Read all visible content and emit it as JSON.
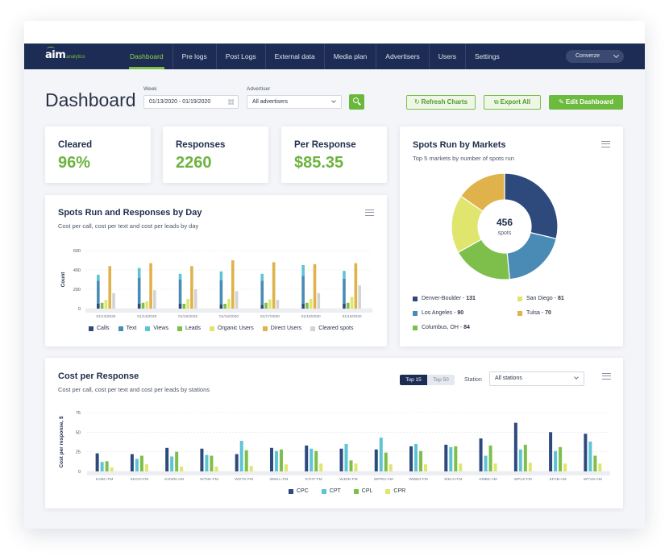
{
  "app": {
    "logo_mark": "aim",
    "logo_sub": "analytics",
    "nav": [
      "Dashboard",
      "Pre logs",
      "Post Logs",
      "External data",
      "Media plan",
      "Advertisers",
      "Users",
      "Settings"
    ],
    "active_nav": "Dashboard",
    "org": "Converze"
  },
  "toolbar": {
    "title": "Dashboard",
    "week_label": "Week",
    "week_value": "01/13/2020 - 01/19/2020",
    "advertiser_label": "Advertiser",
    "advertiser_value": "All advertisers",
    "refresh_label": "Refresh Charts",
    "export_label": "Export All",
    "edit_label": "Edit Dashboard"
  },
  "kpis": [
    {
      "title": "Cleared",
      "value": "96%"
    },
    {
      "title": "Responses",
      "value": "2260"
    },
    {
      "title": "Per Response",
      "value": "$85.35"
    }
  ],
  "colors": {
    "navy": "#2e4a7d",
    "blue": "#4a8bb5",
    "cyan": "#5ec4d4",
    "green": "#7dbf4a",
    "yellow": "#e0e56e",
    "gold": "#e0b24c",
    "grey": "#d3d3d3",
    "accent_green": "#6cb33f"
  },
  "spots_chart": {
    "title": "Spots Run and Responses by Day",
    "subtitle": "Cost per call, cost per text and cost per leads by day",
    "chart_data": {
      "type": "bar",
      "ylabel": "Count",
      "ylim": [
        0,
        600
      ],
      "yticks": [
        "0",
        "200",
        "400",
        "600"
      ],
      "categories": [
        "01/13/2020",
        "01/14/2020",
        "01/15/2020",
        "01/16/2020",
        "01/17/2020",
        "01/18/2020",
        "01/19/2020"
      ],
      "stack_series": [
        {
          "name": "Calls",
          "color": "#2e4a7d",
          "values": [
            50,
            50,
            50,
            45,
            40,
            50,
            50
          ]
        },
        {
          "name": "Text",
          "color": "#4a8bb5",
          "values": [
            240,
            270,
            250,
            250,
            250,
            290,
            260
          ]
        },
        {
          "name": "Views",
          "color": "#5ec4d4",
          "values": [
            60,
            100,
            60,
            90,
            70,
            110,
            80
          ]
        }
      ],
      "series": [
        {
          "name": "Leads",
          "color": "#7dbf4a",
          "values": [
            60,
            60,
            50,
            50,
            60,
            60,
            60
          ]
        },
        {
          "name": "Organic Users",
          "color": "#e0e56e",
          "values": [
            90,
            75,
            100,
            100,
            95,
            100,
            120
          ]
        },
        {
          "name": "Direct Users",
          "color": "#e0b24c",
          "values": [
            440,
            470,
            440,
            500,
            480,
            460,
            470
          ]
        },
        {
          "name": "Cleared spots",
          "color": "#d3d3d3",
          "values": [
            160,
            190,
            200,
            180,
            90,
            160,
            240
          ]
        }
      ],
      "legend": [
        "Calls",
        "Text",
        "Views",
        "Leads",
        "Organic Users",
        "Direct Users",
        "Cleared spots"
      ]
    }
  },
  "markets": {
    "title": "Spots Run by Markets",
    "subtitle": "Top 5 markets by number of spots run",
    "center_value": "456",
    "center_label": "spots",
    "chart_data": {
      "type": "pie",
      "slices": [
        {
          "name": "Denver-Boulder",
          "value": 131,
          "color": "#2e4a7d"
        },
        {
          "name": "Los Angeles",
          "value": 90,
          "color": "#4a8bb5"
        },
        {
          "name": "Columbus, OH",
          "value": 84,
          "color": "#7dbf4a"
        },
        {
          "name": "San Diego",
          "value": 81,
          "color": "#e0e56e"
        },
        {
          "name": "Tulsa",
          "value": 70,
          "color": "#e0b24c"
        }
      ]
    },
    "legend": [
      {
        "name": "Denver-Boulder",
        "value": "131",
        "color": "#2e4a7d"
      },
      {
        "name": "San Diego",
        "value": "81",
        "color": "#e0e56e"
      },
      {
        "name": "Los Angeles",
        "value": "90",
        "color": "#4a8bb5"
      },
      {
        "name": "Tulsa",
        "value": "70",
        "color": "#e0b24c"
      },
      {
        "name": "Columbus, OH",
        "value": "84",
        "color": "#7dbf4a"
      }
    ]
  },
  "cost": {
    "title": "Cost per Response",
    "subtitle": "Cost per call, cost per text and cost per leads by stations",
    "tab_on": "Top 15",
    "tab_off": "Top 50",
    "station_label": "Station",
    "station_value": "All stations",
    "chart_data": {
      "type": "bar",
      "ylabel": "Cost per response, $",
      "ylim": [
        0,
        75
      ],
      "yticks": [
        "0",
        "25",
        "50",
        "75"
      ],
      "categories": [
        "KABC-FM",
        "KKGO-FM",
        "KOWN-AM",
        "WTNK-FM",
        "WGTK-FM",
        "WWLL-FM",
        "KTHT-FM",
        "WJDD-FM",
        "WPRO-AM",
        "WDBO-FM",
        "WKLH-FM",
        "KMBZ-AM",
        "WPLZ-FM",
        "KFAB-AM",
        "WTVN-AM"
      ],
      "series": [
        {
          "name": "CPC",
          "color": "#2e4a7d",
          "values": [
            23,
            22,
            30,
            29,
            22,
            30,
            33,
            29,
            28,
            32,
            34,
            42,
            62,
            50,
            48
          ]
        },
        {
          "name": "CPT",
          "color": "#5ec4d4",
          "values": [
            12,
            16,
            19,
            21,
            39,
            26,
            29,
            35,
            43,
            35,
            31,
            20,
            28,
            26,
            38
          ]
        },
        {
          "name": "CPL",
          "color": "#7dbf4a",
          "values": [
            13,
            20,
            25,
            20,
            27,
            28,
            26,
            14,
            24,
            26,
            32,
            33,
            34,
            31,
            20
          ]
        },
        {
          "name": "CPR",
          "color": "#e0e56e",
          "values": [
            5,
            9,
            6,
            6,
            7,
            9,
            10,
            10,
            9,
            9,
            10,
            10,
            11,
            10,
            10
          ]
        }
      ],
      "legend": [
        "CPC",
        "CPT",
        "CPL",
        "CPR"
      ]
    }
  }
}
